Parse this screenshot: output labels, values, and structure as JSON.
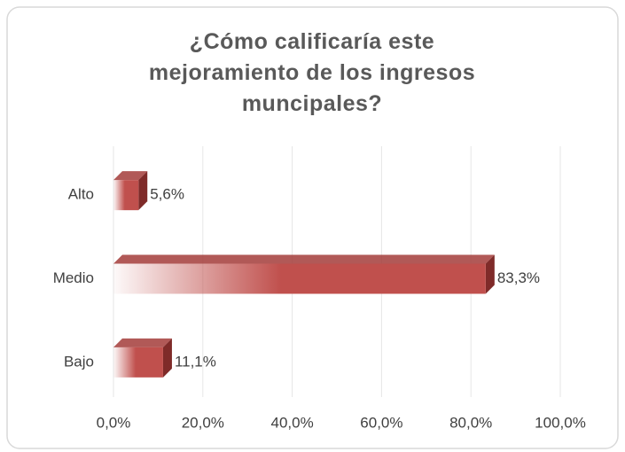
{
  "chart_data": {
    "type": "bar",
    "orientation": "horizontal",
    "title": "¿Cómo calificaría este mejoramiento de los ingresos muncipales?",
    "categories": [
      "Alto",
      "Medio",
      "Bajo"
    ],
    "values": [
      5.6,
      83.3,
      11.1
    ],
    "value_labels": [
      "5,6%",
      "83,3%",
      "11,1%"
    ],
    "color": "#c0504d",
    "xlim": [
      0,
      100
    ],
    "xticks": [
      {
        "value": 0,
        "label": "0,0%"
      },
      {
        "value": 20,
        "label": "20,0%"
      },
      {
        "value": 40,
        "label": "40,0%"
      },
      {
        "value": 60,
        "label": "60,0%"
      },
      {
        "value": 80,
        "label": "80,0%"
      },
      {
        "value": 100,
        "label": "100,0%"
      }
    ],
    "grid": true
  }
}
